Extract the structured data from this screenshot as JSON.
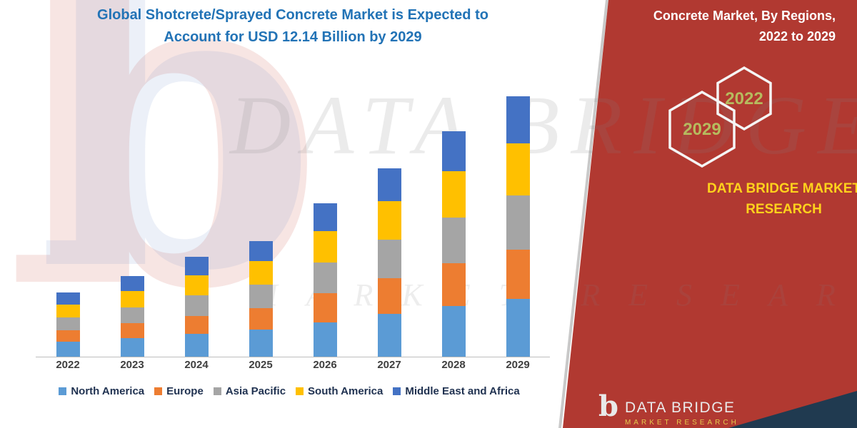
{
  "title": {
    "line1": "Global Shotcrete/Sprayed Concrete Market is Expected to",
    "line2": "Account for USD 12.14 Billion by 2029"
  },
  "side_panel": {
    "heading_line1": "Concrete Market, By Regions,",
    "heading_line2": "2022 to 2029",
    "hexagon_years": [
      "2029",
      "2022"
    ],
    "brand_line1": "DATA BRIDGE MARKET",
    "brand_line2": "RESEARCH"
  },
  "footer_logo": {
    "logo_glyph": "b",
    "wordmark": "DATA BRIDGE",
    "tagline": "MARKET RESEARCH"
  },
  "watermark": {
    "logo_glyph": "b",
    "line1": "DATA BRIDGE",
    "line2": "MARKET RESEARCH"
  },
  "colors": {
    "panel_red": "#B13931",
    "brand_yellow": "#FFD21C",
    "title_blue": "#2273B6",
    "hexagon_year_olive": "#B6BB5E",
    "dark_strip": "#203A50"
  },
  "chart_data": {
    "type": "bar",
    "stacked": true,
    "unit": "USD Billion",
    "categories": [
      "2022",
      "2023",
      "2024",
      "2025",
      "2026",
      "2027",
      "2028",
      "2029"
    ],
    "series": [
      {
        "name": "North America",
        "color": "#5B9BD5",
        "values": [
          0.7,
          0.85,
          1.05,
          1.25,
          1.6,
          2.0,
          2.35,
          2.7
        ]
      },
      {
        "name": "Europe",
        "color": "#ED7D31",
        "values": [
          0.55,
          0.7,
          0.85,
          1.0,
          1.35,
          1.65,
          2.0,
          2.3
        ]
      },
      {
        "name": "Asia Pacific",
        "color": "#A5A5A5",
        "values": [
          0.6,
          0.75,
          0.95,
          1.1,
          1.45,
          1.8,
          2.15,
          2.5
        ]
      },
      {
        "name": "South America",
        "color": "#FFC000",
        "values": [
          0.6,
          0.75,
          0.95,
          1.1,
          1.45,
          1.8,
          2.15,
          2.45
        ]
      },
      {
        "name": "Middle East and Africa",
        "color": "#4472C4",
        "values": [
          0.55,
          0.7,
          0.85,
          0.95,
          1.3,
          1.55,
          1.85,
          2.19
        ]
      }
    ],
    "totals": [
      3.0,
      3.75,
      4.65,
      5.4,
      7.15,
      8.8,
      10.5,
      12.14
    ],
    "ylim": [
      0,
      12.14
    ],
    "grid": false,
    "legend_position": "bottom",
    "highlight_total": {
      "year": "2029",
      "value": 12.14
    }
  }
}
